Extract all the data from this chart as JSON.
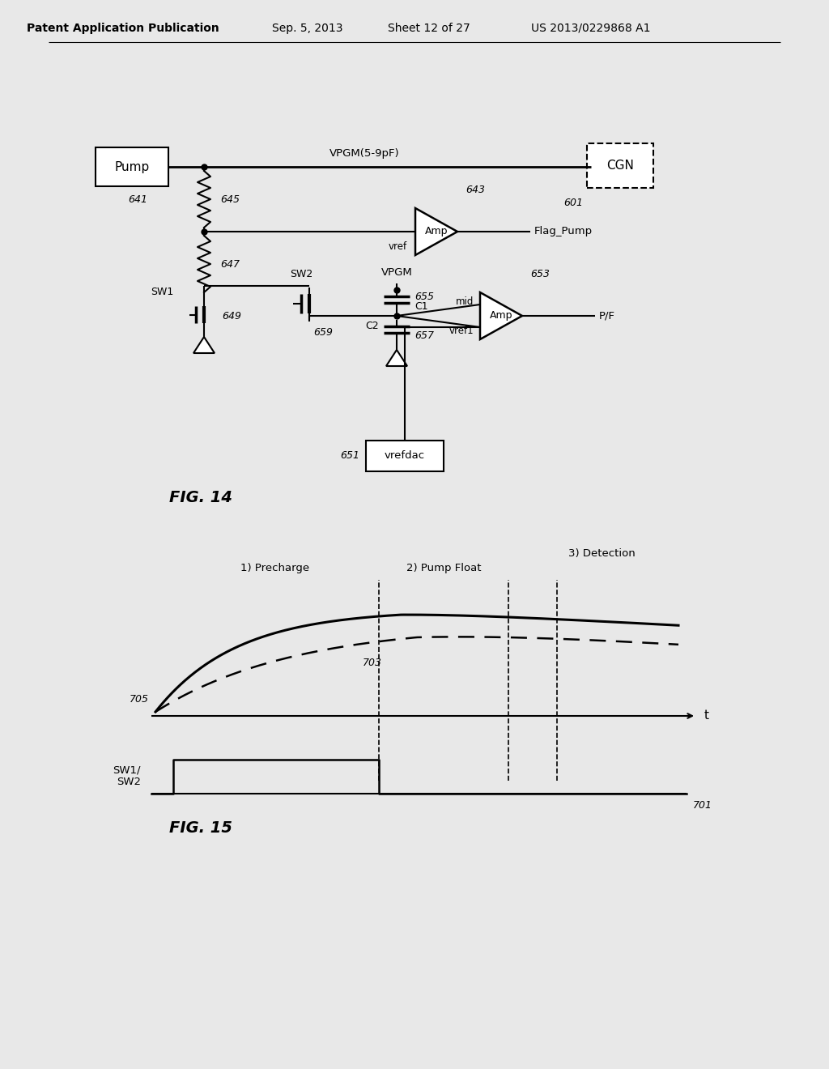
{
  "bg_color": "#e8e8e8",
  "header_text": "Patent Application Publication",
  "header_date": "Sep. 5, 2013",
  "header_sheet": "Sheet 12 of 27",
  "header_patent": "US 2013/0229868 A1",
  "fig14_label": "FIG. 14",
  "fig15_label": "FIG. 15",
  "circuit_labels": {
    "pump": "Pump",
    "vpgm_label": "VPGM(5-9pF)",
    "cgn": "CGN",
    "ref641": "641",
    "ref645": "645",
    "ref647": "647",
    "ref649": "649",
    "ref601": "601",
    "ref643": "643",
    "amp1_label": "Amp",
    "flag_pump": "Flag_Pump",
    "vref": "vref",
    "sw1": "SW1",
    "sw2": "SW2",
    "vpgm2": "VPGM",
    "ref655": "655",
    "c1": "C1",
    "ref657": "657",
    "c2": "C2",
    "ref659": "659",
    "ref653": "653",
    "amp2_label": "Amp",
    "mid": "mid",
    "vref1": "vref1",
    "pf": "P/F",
    "ref651": "651",
    "vrefdac": "vrefdac"
  },
  "timing_labels": {
    "precharge": "1) Precharge",
    "pump_float": "2) Pump Float",
    "detection": "3) Detection",
    "ref705": "705",
    "ref703": "703",
    "ref701": "701",
    "sw_label": "SW1/\nSW2",
    "t_label": "t"
  }
}
